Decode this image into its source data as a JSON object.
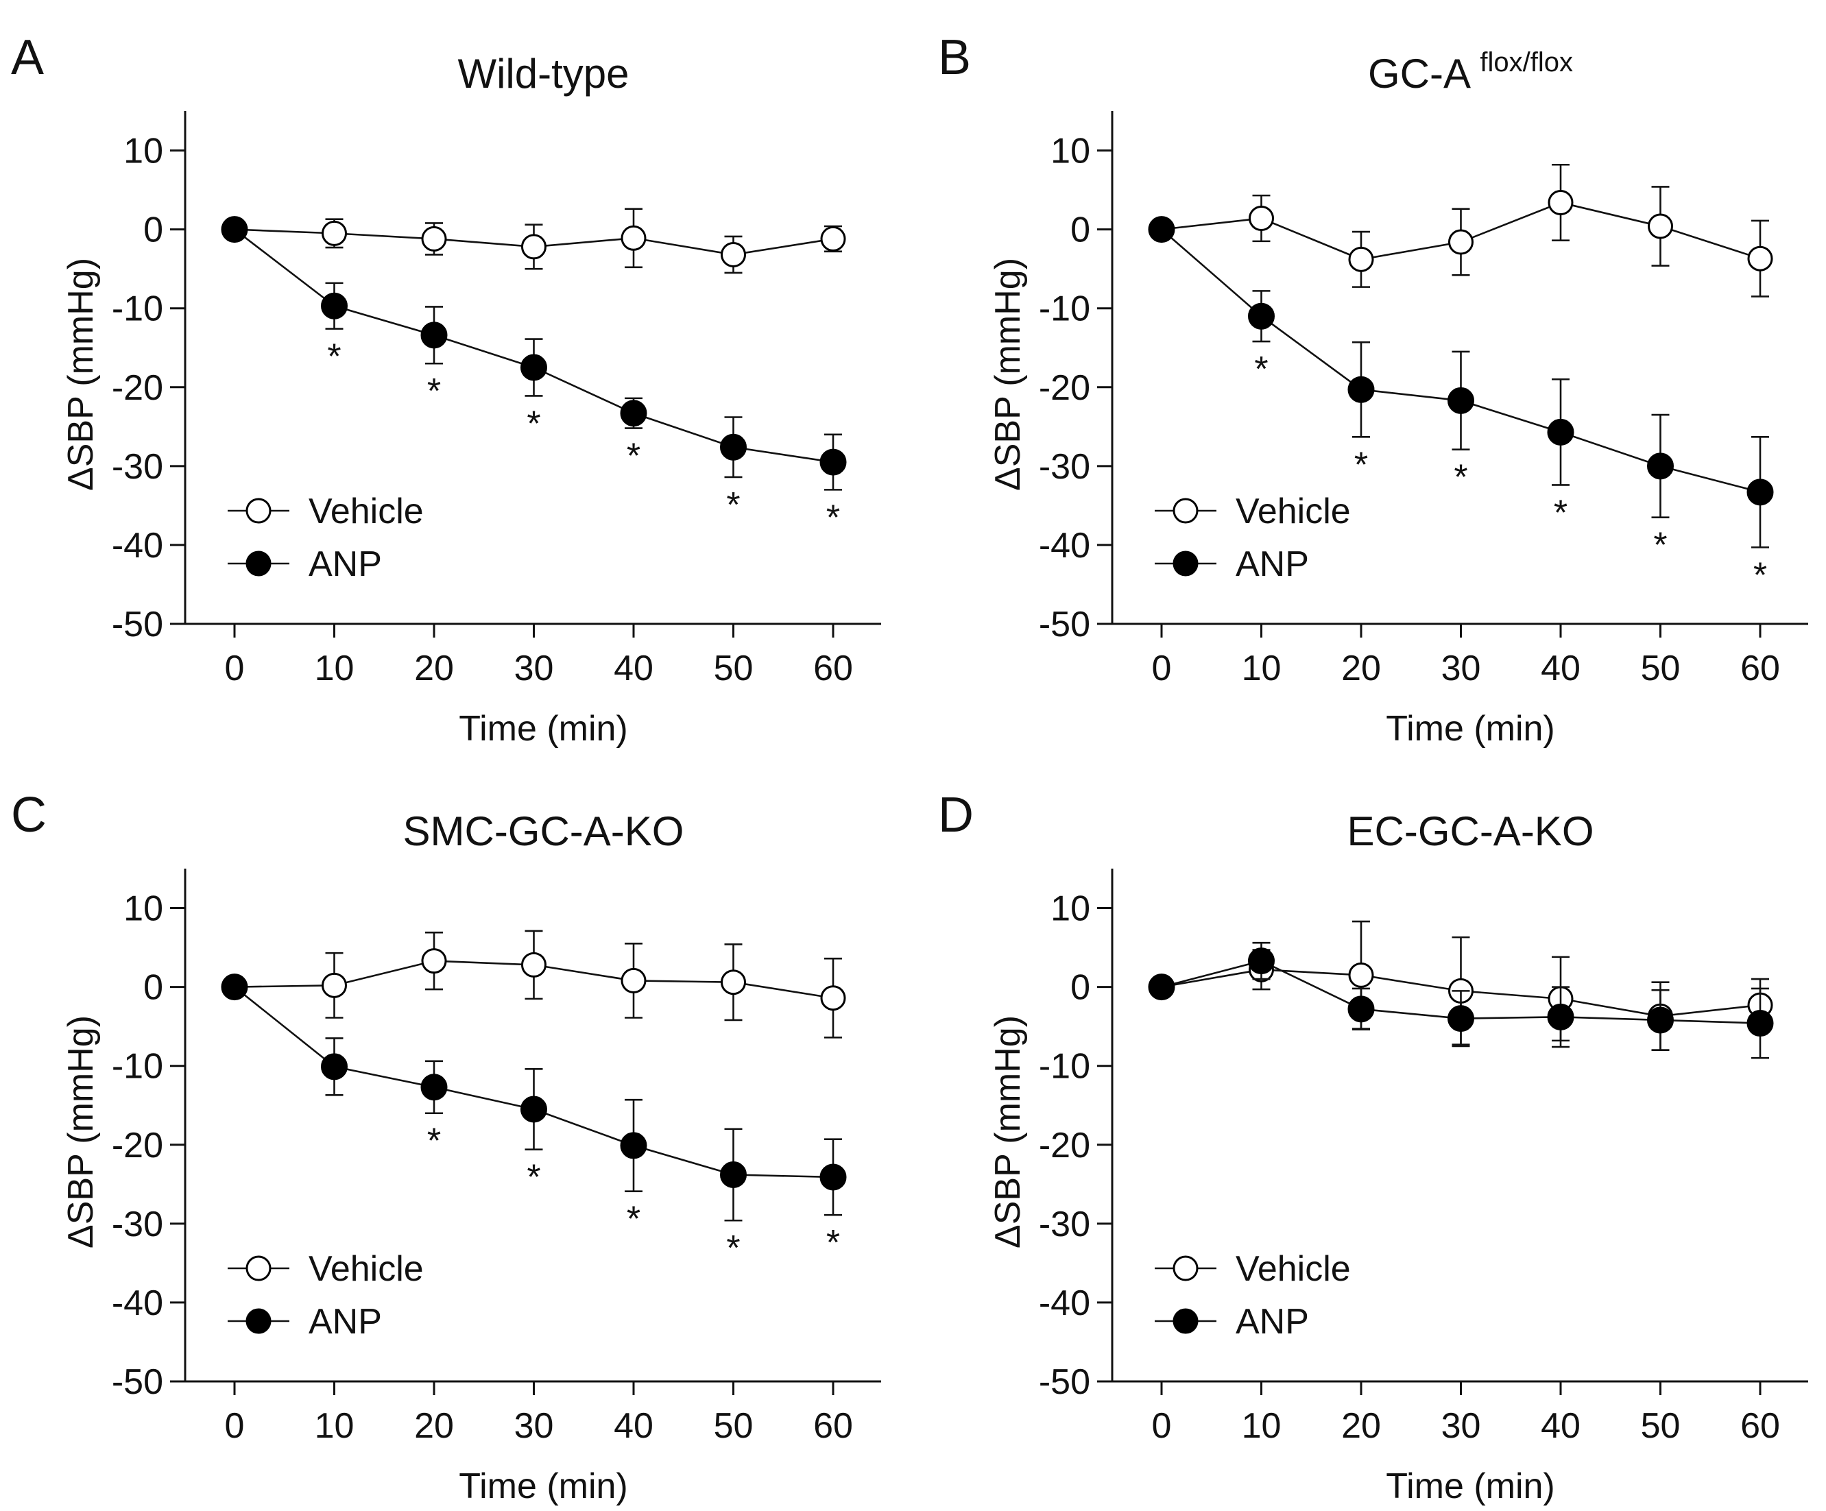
{
  "chart_data": [
    {
      "type": "line",
      "panel": "A",
      "title": "Wild-type",
      "title_superscript": "",
      "xlabel": "Time (min)",
      "ylabel": "ΔSBP (mmHg)",
      "xlim": [
        -5,
        65
      ],
      "ylim": [
        -50,
        15
      ],
      "x_ticks": [
        0,
        10,
        20,
        30,
        40,
        50,
        60
      ],
      "y_ticks": [
        10,
        0,
        -10,
        -20,
        -30,
        -40,
        -50
      ],
      "legend_position": "bottom-left",
      "series": [
        {
          "name": "Vehicle",
          "marker": "open-circle",
          "x": [
            0,
            10,
            20,
            30,
            40,
            50,
            60
          ],
          "values": [
            0,
            -0.5,
            -1.2,
            -2.2,
            -1.1,
            -3.2,
            -1.2
          ],
          "errors": [
            0,
            1.8,
            2.0,
            2.8,
            3.7,
            2.3,
            1.6
          ]
        },
        {
          "name": "ANP",
          "marker": "filled-circle",
          "x": [
            0,
            10,
            20,
            30,
            40,
            50,
            60
          ],
          "values": [
            0,
            -9.7,
            -13.4,
            -17.5,
            -23.3,
            -27.6,
            -29.5
          ],
          "errors": [
            0,
            2.9,
            3.6,
            3.6,
            1.9,
            3.8,
            3.5
          ]
        }
      ],
      "significance_label": "*",
      "significant_x": [
        10,
        20,
        30,
        40,
        50,
        60
      ]
    },
    {
      "type": "line",
      "panel": "B",
      "title": "GC-A ",
      "title_superscript": "flox/flox",
      "xlabel": "Time (min)",
      "ylabel": "ΔSBP (mmHg)",
      "xlim": [
        -5,
        65
      ],
      "ylim": [
        -50,
        15
      ],
      "x_ticks": [
        0,
        10,
        20,
        30,
        40,
        50,
        60
      ],
      "y_ticks": [
        10,
        0,
        -10,
        -20,
        -30,
        -40,
        -50
      ],
      "legend_position": "bottom-left",
      "series": [
        {
          "name": "Vehicle",
          "marker": "open-circle",
          "x": [
            0,
            10,
            20,
            30,
            40,
            50,
            60
          ],
          "values": [
            0,
            1.4,
            -3.8,
            -1.6,
            3.4,
            0.4,
            -3.7
          ],
          "errors": [
            0,
            2.9,
            3.5,
            4.2,
            4.8,
            5.0,
            4.8
          ]
        },
        {
          "name": "ANP",
          "marker": "filled-circle",
          "x": [
            0,
            10,
            20,
            30,
            40,
            50,
            60
          ],
          "values": [
            0,
            -11.0,
            -20.3,
            -21.7,
            -25.7,
            -30.0,
            -33.3
          ],
          "errors": [
            0,
            3.2,
            6.0,
            6.2,
            6.7,
            6.5,
            7.0
          ]
        }
      ],
      "significance_label": "*",
      "significant_x": [
        10,
        20,
        30,
        40,
        50,
        60
      ]
    },
    {
      "type": "line",
      "panel": "C",
      "title": "SMC-GC-A-KO",
      "title_superscript": "",
      "xlabel": "Time (min)",
      "ylabel": "ΔSBP (mmHg)",
      "xlim": [
        -5,
        65
      ],
      "ylim": [
        -50,
        15
      ],
      "x_ticks": [
        0,
        10,
        20,
        30,
        40,
        50,
        60
      ],
      "y_ticks": [
        10,
        0,
        -10,
        -20,
        -30,
        -40,
        -50
      ],
      "legend_position": "bottom-left",
      "series": [
        {
          "name": "Vehicle",
          "marker": "open-circle",
          "x": [
            0,
            10,
            20,
            30,
            40,
            50,
            60
          ],
          "values": [
            0,
            0.2,
            3.3,
            2.8,
            0.8,
            0.6,
            -1.4
          ],
          "errors": [
            0,
            4.1,
            3.6,
            4.3,
            4.7,
            4.8,
            5.0
          ]
        },
        {
          "name": "ANP",
          "marker": "filled-circle",
          "x": [
            0,
            10,
            20,
            30,
            40,
            50,
            60
          ],
          "values": [
            0,
            -10.1,
            -12.7,
            -15.5,
            -20.1,
            -23.8,
            -24.1
          ],
          "errors": [
            0,
            3.6,
            3.3,
            5.1,
            5.8,
            5.8,
            4.8
          ]
        }
      ],
      "significance_label": "*",
      "significant_x": [
        20,
        30,
        40,
        50,
        60
      ]
    },
    {
      "type": "line",
      "panel": "D",
      "title": "EC-GC-A-KO",
      "title_superscript": "",
      "xlabel": "Time (min)",
      "ylabel": "ΔSBP (mmHg)",
      "xlim": [
        -5,
        65
      ],
      "ylim": [
        -50,
        15
      ],
      "x_ticks": [
        0,
        10,
        20,
        30,
        40,
        50,
        60
      ],
      "y_ticks": [
        10,
        0,
        -10,
        -20,
        -30,
        -40,
        -50
      ],
      "legend_position": "bottom-left",
      "series": [
        {
          "name": "Vehicle",
          "marker": "open-circle",
          "x": [
            0,
            10,
            20,
            30,
            40,
            50,
            60
          ],
          "values": [
            0,
            2.2,
            1.5,
            -0.5,
            -1.5,
            -3.7,
            -2.3
          ],
          "errors": [
            0,
            2.5,
            6.8,
            6.8,
            5.3,
            4.3,
            3.3
          ]
        },
        {
          "name": "ANP",
          "marker": "filled-circle",
          "x": [
            0,
            10,
            20,
            30,
            40,
            50,
            60
          ],
          "values": [
            0,
            3.3,
            -2.8,
            -4.0,
            -3.8,
            -4.2,
            -4.6
          ],
          "errors": [
            0,
            2.3,
            2.6,
            3.5,
            3.8,
            3.8,
            4.4
          ]
        }
      ],
      "significance_label": "",
      "significant_x": []
    }
  ]
}
